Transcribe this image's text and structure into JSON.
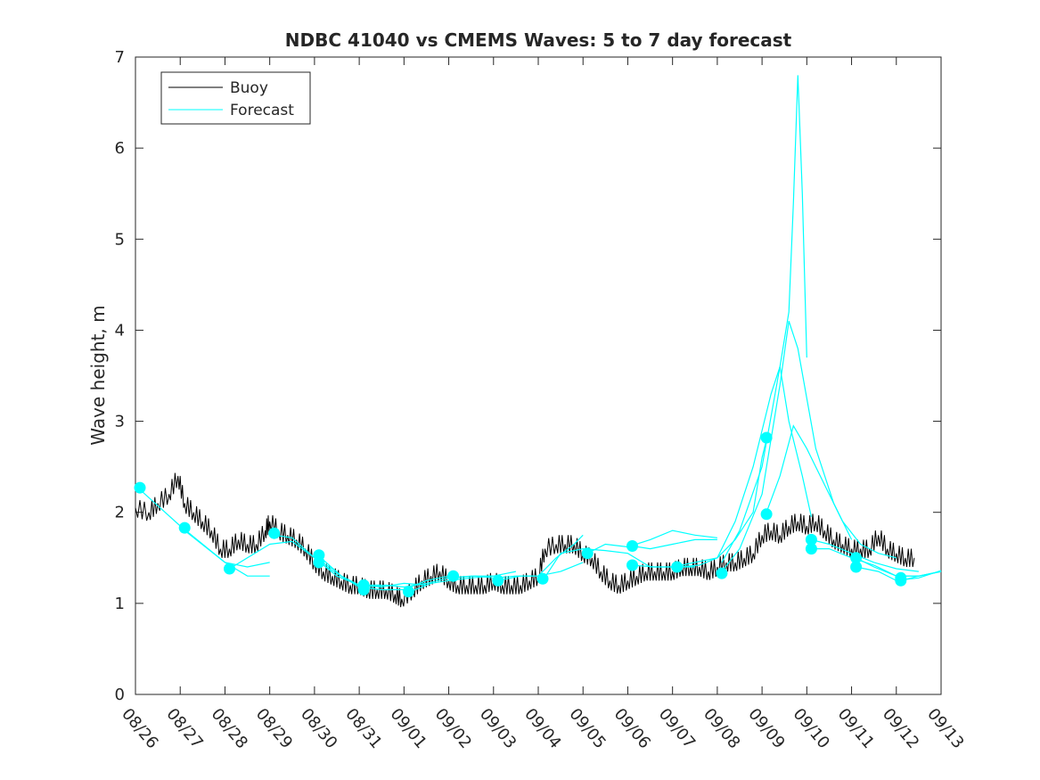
{
  "chart_data": {
    "type": "line",
    "title": "NDBC 41040 vs CMEMS Waves: 5 to 7 day forecast",
    "xlabel": "",
    "ylabel": "Wave height, m",
    "xlim": [
      0,
      18
    ],
    "ylim": [
      0,
      7
    ],
    "x_ticks": [
      "08/26",
      "08/27",
      "08/28",
      "08/29",
      "08/30",
      "08/31",
      "09/01",
      "09/02",
      "09/03",
      "09/04",
      "09/05",
      "09/06",
      "09/07",
      "09/08",
      "09/09",
      "09/10",
      "09/11",
      "09/12",
      "09/13"
    ],
    "y_ticks": [
      0,
      1,
      2,
      3,
      4,
      5,
      6,
      7
    ],
    "legend": {
      "position": "top-left",
      "entries": [
        {
          "label": "Buoy",
          "color": "#000000"
        },
        {
          "label": "Forecast",
          "color": "#00ffff"
        }
      ]
    },
    "colors": {
      "buoy": "#000000",
      "forecast": "#00ffff"
    },
    "buoy": {
      "name": "Buoy",
      "points": [
        [
          0,
          2.05
        ],
        [
          0.3,
          2.0
        ],
        [
          0.5,
          2.1
        ],
        [
          0.75,
          2.2
        ],
        [
          0.95,
          2.4
        ],
        [
          1.1,
          2.1
        ],
        [
          1.3,
          2.0
        ],
        [
          1.5,
          1.9
        ],
        [
          1.7,
          1.8
        ],
        [
          1.9,
          1.6
        ],
        [
          2.1,
          1.6
        ],
        [
          2.3,
          1.7
        ],
        [
          2.5,
          1.65
        ],
        [
          2.7,
          1.65
        ],
        [
          2.9,
          1.8
        ],
        [
          3.0,
          1.9
        ],
        [
          3.2,
          1.8
        ],
        [
          3.4,
          1.75
        ],
        [
          3.6,
          1.7
        ],
        [
          3.8,
          1.6
        ],
        [
          4.0,
          1.45
        ],
        [
          4.2,
          1.35
        ],
        [
          4.4,
          1.3
        ],
        [
          4.6,
          1.25
        ],
        [
          4.8,
          1.2
        ],
        [
          5.0,
          1.2
        ],
        [
          5.2,
          1.15
        ],
        [
          5.4,
          1.15
        ],
        [
          5.6,
          1.15
        ],
        [
          5.8,
          1.1
        ],
        [
          5.95,
          1.05
        ],
        [
          6.2,
          1.15
        ],
        [
          6.4,
          1.25
        ],
        [
          6.6,
          1.3
        ],
        [
          6.8,
          1.35
        ],
        [
          7.0,
          1.25
        ],
        [
          7.2,
          1.2
        ],
        [
          7.4,
          1.2
        ],
        [
          7.6,
          1.2
        ],
        [
          7.8,
          1.2
        ],
        [
          8.0,
          1.25
        ],
        [
          8.2,
          1.2
        ],
        [
          8.4,
          1.2
        ],
        [
          8.6,
          1.2
        ],
        [
          8.8,
          1.25
        ],
        [
          9.0,
          1.3
        ],
        [
          9.15,
          1.6
        ],
        [
          9.4,
          1.65
        ],
        [
          9.6,
          1.65
        ],
        [
          9.8,
          1.65
        ],
        [
          10.0,
          1.55
        ],
        [
          10.2,
          1.5
        ],
        [
          10.4,
          1.35
        ],
        [
          10.6,
          1.25
        ],
        [
          10.8,
          1.2
        ],
        [
          11.0,
          1.25
        ],
        [
          11.2,
          1.3
        ],
        [
          11.4,
          1.35
        ],
        [
          11.6,
          1.35
        ],
        [
          11.8,
          1.35
        ],
        [
          12.0,
          1.35
        ],
        [
          12.2,
          1.4
        ],
        [
          12.4,
          1.4
        ],
        [
          12.6,
          1.4
        ],
        [
          12.8,
          1.35
        ],
        [
          13.0,
          1.4
        ],
        [
          13.2,
          1.45
        ],
        [
          13.4,
          1.45
        ],
        [
          13.6,
          1.5
        ],
        [
          13.8,
          1.55
        ],
        [
          14.0,
          1.75
        ],
        [
          14.2,
          1.8
        ],
        [
          14.4,
          1.75
        ],
        [
          14.6,
          1.85
        ],
        [
          14.8,
          1.9
        ],
        [
          15.0,
          1.85
        ],
        [
          15.2,
          1.9
        ],
        [
          15.4,
          1.8
        ],
        [
          15.6,
          1.7
        ],
        [
          15.8,
          1.65
        ],
        [
          16.0,
          1.6
        ],
        [
          16.2,
          1.6
        ],
        [
          16.4,
          1.6
        ],
        [
          16.6,
          1.75
        ],
        [
          16.8,
          1.6
        ],
        [
          17.0,
          1.55
        ],
        [
          17.2,
          1.5
        ],
        [
          17.4,
          1.5
        ]
      ]
    },
    "forecast_lines": [
      {
        "name": "Forecast",
        "points": [
          [
            0.1,
            2.25
          ],
          [
            1.0,
            1.85
          ],
          [
            2.0,
            1.45
          ],
          [
            2.5,
            1.3
          ],
          [
            3.0,
            1.3
          ]
        ]
      },
      {
        "name": "Forecast",
        "points": [
          [
            1.1,
            1.8
          ],
          [
            2.0,
            1.45
          ],
          [
            2.5,
            1.4
          ],
          [
            3.0,
            1.45
          ]
        ]
      },
      {
        "name": "Forecast",
        "points": [
          [
            2.1,
            1.38
          ],
          [
            3.0,
            1.65
          ],
          [
            3.5,
            1.68
          ],
          [
            4.0,
            1.5
          ],
          [
            4.5,
            1.35
          ]
        ]
      },
      {
        "name": "Forecast",
        "points": [
          [
            3.1,
            1.75
          ],
          [
            3.5,
            1.72
          ],
          [
            4.0,
            1.5
          ],
          [
            4.5,
            1.3
          ],
          [
            5.0,
            1.2
          ],
          [
            5.5,
            1.2
          ]
        ]
      },
      {
        "name": "Forecast",
        "points": [
          [
            4.1,
            1.52
          ],
          [
            4.6,
            1.3
          ],
          [
            5.0,
            1.2
          ],
          [
            5.5,
            1.18
          ],
          [
            6.0,
            1.22
          ],
          [
            6.5,
            1.2
          ]
        ]
      },
      {
        "name": "Forecast",
        "points": [
          [
            4.1,
            1.45
          ],
          [
            4.6,
            1.3
          ],
          [
            5.0,
            1.18
          ],
          [
            5.5,
            1.15
          ],
          [
            6.0,
            1.15
          ],
          [
            6.5,
            1.25
          ],
          [
            7.0,
            1.3
          ]
        ]
      },
      {
        "name": "Forecast",
        "points": [
          [
            5.1,
            1.18
          ],
          [
            5.6,
            1.2
          ],
          [
            6.0,
            1.18
          ],
          [
            6.5,
            1.22
          ],
          [
            7.0,
            1.28
          ],
          [
            7.5,
            1.3
          ],
          [
            8.0,
            1.3
          ]
        ]
      },
      {
        "name": "Forecast",
        "points": [
          [
            6.1,
            1.12
          ],
          [
            6.6,
            1.22
          ],
          [
            7.0,
            1.25
          ],
          [
            7.5,
            1.28
          ],
          [
            8.0,
            1.3
          ],
          [
            8.5,
            1.35
          ]
        ]
      },
      {
        "name": "Forecast",
        "points": [
          [
            7.1,
            1.28
          ],
          [
            7.6,
            1.3
          ],
          [
            8.0,
            1.28
          ],
          [
            8.5,
            1.3
          ],
          [
            9.0,
            1.3
          ],
          [
            9.5,
            1.35
          ],
          [
            10.0,
            1.45
          ]
        ]
      },
      {
        "name": "Forecast",
        "points": [
          [
            8.1,
            1.25
          ],
          [
            8.6,
            1.3
          ],
          [
            9.0,
            1.3
          ],
          [
            9.4,
            1.5
          ],
          [
            9.8,
            1.65
          ],
          [
            10.0,
            1.75
          ]
        ]
      },
      {
        "name": "Forecast",
        "points": [
          [
            9.1,
            1.25
          ],
          [
            9.5,
            1.55
          ],
          [
            10.0,
            1.6
          ],
          [
            10.5,
            1.58
          ],
          [
            11.0,
            1.55
          ],
          [
            11.5,
            1.4
          ],
          [
            12.0,
            1.4
          ],
          [
            12.5,
            1.4
          ]
        ]
      },
      {
        "name": "Forecast",
        "points": [
          [
            10.1,
            1.55
          ],
          [
            10.5,
            1.65
          ],
          [
            11.0,
            1.62
          ],
          [
            11.5,
            1.7
          ],
          [
            12.0,
            1.8
          ],
          [
            12.5,
            1.75
          ],
          [
            13.0,
            1.72
          ]
        ]
      },
      {
        "name": "Forecast",
        "points": [
          [
            11.1,
            1.63
          ],
          [
            11.5,
            1.6
          ],
          [
            12.0,
            1.65
          ],
          [
            12.5,
            1.7
          ],
          [
            13.0,
            1.7
          ]
        ]
      },
      {
        "name": "Forecast",
        "points": [
          [
            11.1,
            1.42
          ],
          [
            11.6,
            1.4
          ],
          [
            12.0,
            1.4
          ],
          [
            12.5,
            1.45
          ],
          [
            13.0,
            1.5
          ],
          [
            13.4,
            1.7
          ],
          [
            13.8,
            2.0
          ],
          [
            14.0,
            2.6
          ],
          [
            14.1,
            2.8
          ]
        ]
      },
      {
        "name": "Forecast",
        "points": [
          [
            12.1,
            1.4
          ],
          [
            12.6,
            1.42
          ],
          [
            13.0,
            1.5
          ],
          [
            13.4,
            1.9
          ],
          [
            13.8,
            2.5
          ],
          [
            14.2,
            3.3
          ],
          [
            14.4,
            3.6
          ],
          [
            14.6,
            3.0
          ],
          [
            14.9,
            2.4
          ],
          [
            15.1,
            1.95
          ]
        ]
      },
      {
        "name": "Forecast",
        "points": [
          [
            13.1,
            1.35
          ],
          [
            13.5,
            1.6
          ],
          [
            14.0,
            2.2
          ],
          [
            14.4,
            3.4
          ],
          [
            14.6,
            4.1
          ],
          [
            14.8,
            3.8
          ],
          [
            15.2,
            2.7
          ],
          [
            15.6,
            2.1
          ],
          [
            16.0,
            1.7
          ]
        ]
      },
      {
        "name": "Forecast",
        "points": [
          [
            13.1,
            1.45
          ],
          [
            13.5,
            1.8
          ],
          [
            14.0,
            2.5
          ],
          [
            14.4,
            3.6
          ],
          [
            14.6,
            4.2
          ],
          [
            14.7,
            5.4
          ],
          [
            14.8,
            6.8
          ],
          [
            14.9,
            5.5
          ],
          [
            15.0,
            3.7
          ]
        ]
      },
      {
        "name": "Forecast",
        "points": [
          [
            14.1,
            2.0
          ],
          [
            14.4,
            2.4
          ],
          [
            14.7,
            2.95
          ],
          [
            15.0,
            2.7
          ],
          [
            15.4,
            2.3
          ],
          [
            15.8,
            1.9
          ],
          [
            16.2,
            1.65
          ],
          [
            16.6,
            1.55
          ],
          [
            17.0,
            1.5
          ]
        ]
      },
      {
        "name": "Forecast",
        "points": [
          [
            15.1,
            1.7
          ],
          [
            15.5,
            1.65
          ],
          [
            16.0,
            1.55
          ],
          [
            16.5,
            1.45
          ],
          [
            17.0,
            1.38
          ],
          [
            17.5,
            1.35
          ]
        ]
      },
      {
        "name": "Forecast",
        "points": [
          [
            15.1,
            1.6
          ],
          [
            15.5,
            1.6
          ],
          [
            16.0,
            1.5
          ],
          [
            16.5,
            1.42
          ],
          [
            17.0,
            1.3
          ],
          [
            17.5,
            1.3
          ],
          [
            18.0,
            1.35
          ]
        ]
      },
      {
        "name": "Forecast",
        "points": [
          [
            16.1,
            1.5
          ],
          [
            16.5,
            1.4
          ],
          [
            17.0,
            1.3
          ],
          [
            17.5,
            1.3
          ],
          [
            18.0,
            1.35
          ]
        ]
      },
      {
        "name": "Forecast",
        "points": [
          [
            16.1,
            1.4
          ],
          [
            16.6,
            1.35
          ],
          [
            17.0,
            1.25
          ],
          [
            17.5,
            1.28
          ],
          [
            18.0,
            1.36
          ]
        ]
      },
      {
        "name": "Forecast",
        "points": [
          [
            17.1,
            1.25
          ],
          [
            17.5,
            1.3
          ],
          [
            18.0,
            1.35
          ]
        ]
      }
    ],
    "forecast_markers": [
      [
        0.1,
        2.27
      ],
      [
        1.1,
        1.83
      ],
      [
        2.1,
        1.38
      ],
      [
        3.1,
        1.77
      ],
      [
        4.1,
        1.53
      ],
      [
        4.1,
        1.45
      ],
      [
        5.1,
        1.2
      ],
      [
        5.1,
        1.15
      ],
      [
        6.1,
        1.13
      ],
      [
        7.1,
        1.3
      ],
      [
        8.1,
        1.25
      ],
      [
        9.1,
        1.27
      ],
      [
        10.1,
        1.55
      ],
      [
        11.1,
        1.63
      ],
      [
        11.1,
        1.42
      ],
      [
        12.1,
        1.4
      ],
      [
        13.1,
        1.33
      ],
      [
        14.1,
        2.82
      ],
      [
        14.1,
        1.98
      ],
      [
        15.1,
        1.7
      ],
      [
        15.1,
        1.6
      ],
      [
        16.1,
        1.5
      ],
      [
        16.1,
        1.4
      ],
      [
        17.1,
        1.28
      ],
      [
        17.1,
        1.25
      ]
    ]
  }
}
